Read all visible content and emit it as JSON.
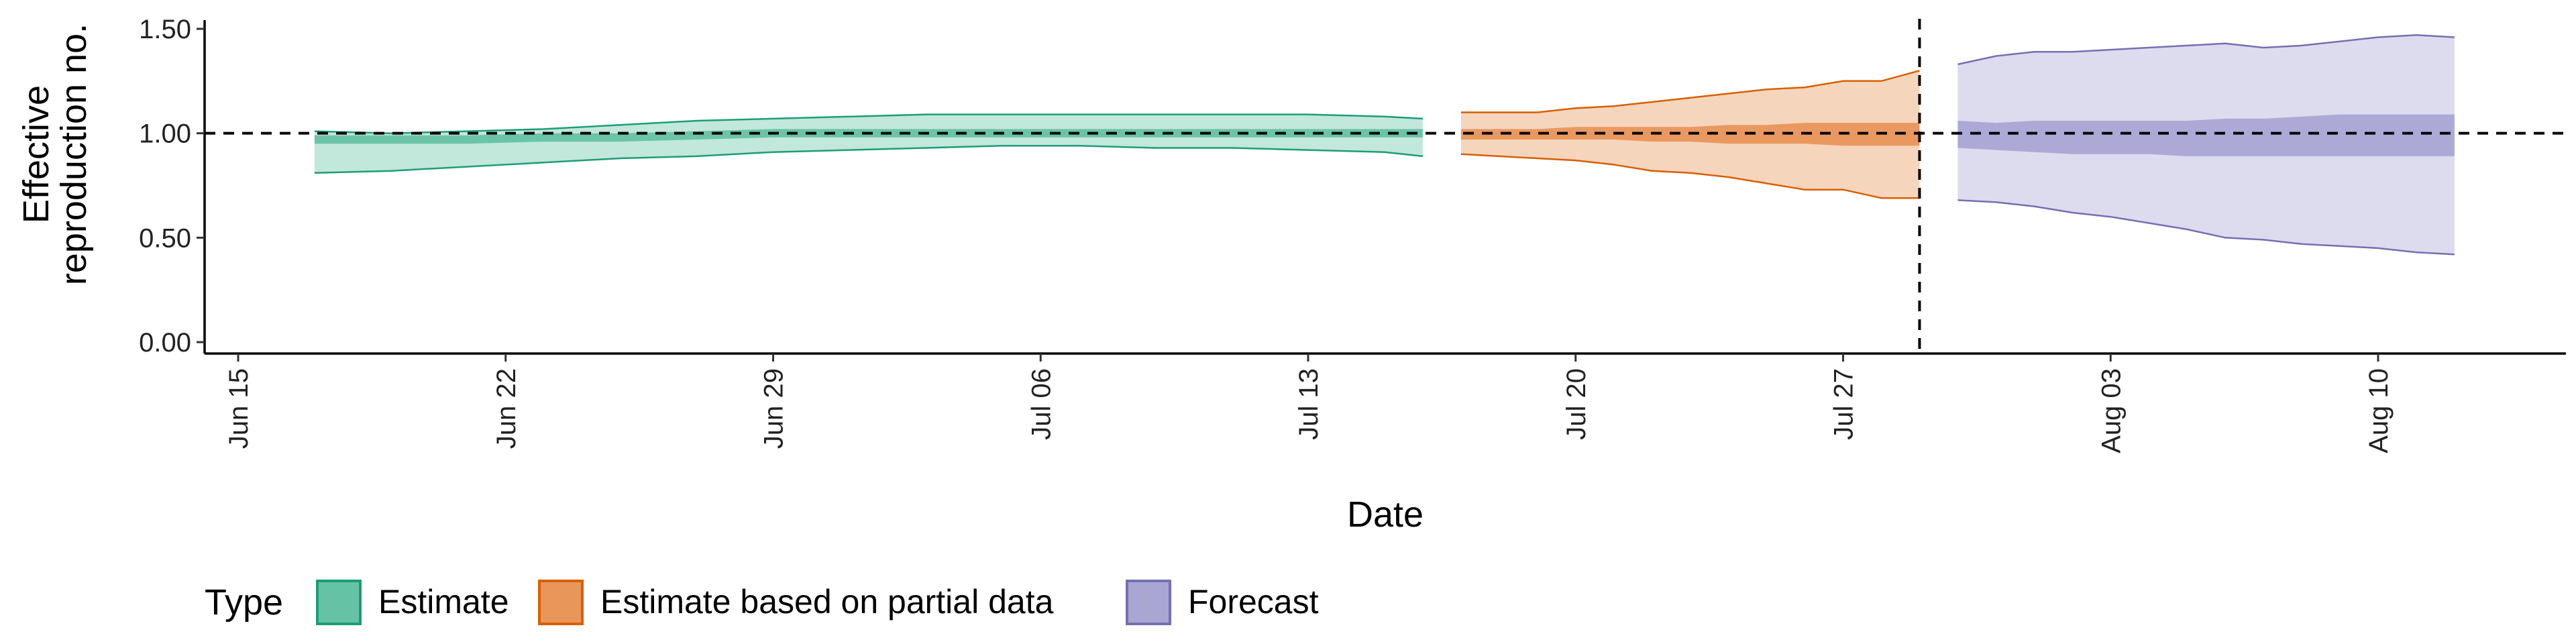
{
  "chart_data": {
    "type": "area",
    "xlabel": "Date",
    "ylabel": [
      "Effective",
      "reproduction no."
    ],
    "ylim": [
      0,
      1.55
    ],
    "y_ticks": [
      0,
      0.5,
      1.0,
      1.5
    ],
    "y_tick_labels": [
      "0.00",
      "0.50",
      "1.00",
      "1.50"
    ],
    "x_ticks": [
      "2020-06-15",
      "2020-06-22",
      "2020-06-29",
      "2020-07-06",
      "2020-07-13",
      "2020-07-20",
      "2020-07-27",
      "2020-08-03",
      "2020-08-10"
    ],
    "x_tick_labels": [
      "Jun 15",
      "Jun 22",
      "Jun 29",
      "Jul 06",
      "Jul 13",
      "Jul 20",
      "Jul 27",
      "Aug 03",
      "Aug 10"
    ],
    "x_range": [
      "2020-06-15",
      "2020-08-15"
    ],
    "reference_hline": 1.0,
    "reference_vline": "2020-07-29",
    "legend": {
      "title": "Type",
      "position": "bottom",
      "items": [
        {
          "label": "Estimate",
          "fill": "#66c2a5",
          "stroke": "#1b9e77"
        },
        {
          "label": "Estimate based on partial data",
          "fill": "#e8965a",
          "stroke": "#d95f02"
        },
        {
          "label": "Forecast",
          "fill": "#a9a6d4",
          "stroke": "#7570b3"
        }
      ]
    },
    "series": [
      {
        "name": "Estimate",
        "fill": "#66c2a5",
        "stroke": "#1b9e77",
        "x": [
          "2020-06-17",
          "2020-06-19",
          "2020-06-21",
          "2020-06-23",
          "2020-06-25",
          "2020-06-27",
          "2020-06-29",
          "2020-07-01",
          "2020-07-03",
          "2020-07-05",
          "2020-07-07",
          "2020-07-09",
          "2020-07-11",
          "2020-07-13",
          "2020-07-15",
          "2020-07-16"
        ],
        "lower_90": [
          0.81,
          0.82,
          0.84,
          0.86,
          0.88,
          0.89,
          0.91,
          0.92,
          0.93,
          0.94,
          0.94,
          0.93,
          0.93,
          0.92,
          0.91,
          0.89
        ],
        "upper_90": [
          1.01,
          1.0,
          1.01,
          1.02,
          1.04,
          1.06,
          1.07,
          1.08,
          1.09,
          1.09,
          1.09,
          1.09,
          1.09,
          1.09,
          1.08,
          1.07
        ],
        "lower_20": [
          0.95,
          0.95,
          0.95,
          0.96,
          0.96,
          0.97,
          0.98,
          0.98,
          0.98,
          0.98,
          0.98,
          0.98,
          0.98,
          0.98,
          0.98,
          0.98
        ],
        "upper_20": [
          0.99,
          0.99,
          0.99,
          1.0,
          1.0,
          1.01,
          1.02,
          1.02,
          1.02,
          1.02,
          1.02,
          1.02,
          1.02,
          1.02,
          1.02,
          1.02
        ]
      },
      {
        "name": "Estimate based on partial data",
        "fill": "#e8965a",
        "stroke": "#d95f02",
        "x": [
          "2020-07-17",
          "2020-07-18",
          "2020-07-19",
          "2020-07-20",
          "2020-07-21",
          "2020-07-22",
          "2020-07-23",
          "2020-07-24",
          "2020-07-25",
          "2020-07-26",
          "2020-07-27",
          "2020-07-28",
          "2020-07-29"
        ],
        "lower_90": [
          0.9,
          0.89,
          0.88,
          0.87,
          0.85,
          0.82,
          0.81,
          0.79,
          0.76,
          0.73,
          0.73,
          0.69,
          0.69
        ],
        "upper_90": [
          1.1,
          1.1,
          1.1,
          1.12,
          1.13,
          1.15,
          1.17,
          1.19,
          1.21,
          1.22,
          1.25,
          1.25,
          1.3
        ],
        "lower_20": [
          0.97,
          0.97,
          0.97,
          0.97,
          0.97,
          0.96,
          0.96,
          0.95,
          0.95,
          0.95,
          0.94,
          0.94,
          0.94
        ],
        "upper_20": [
          1.02,
          1.02,
          1.02,
          1.03,
          1.03,
          1.03,
          1.03,
          1.04,
          1.04,
          1.05,
          1.05,
          1.05,
          1.05
        ]
      },
      {
        "name": "Forecast",
        "fill": "#a9a6d4",
        "stroke": "#7570b3",
        "x": [
          "2020-07-30",
          "2020-07-31",
          "2020-08-01",
          "2020-08-02",
          "2020-08-03",
          "2020-08-04",
          "2020-08-05",
          "2020-08-06",
          "2020-08-07",
          "2020-08-08",
          "2020-08-09",
          "2020-08-10",
          "2020-08-11",
          "2020-08-12"
        ],
        "lower_90": [
          0.68,
          0.67,
          0.65,
          0.62,
          0.6,
          0.57,
          0.54,
          0.5,
          0.49,
          0.47,
          0.46,
          0.45,
          0.43,
          0.42
        ],
        "upper_90": [
          1.33,
          1.37,
          1.39,
          1.39,
          1.4,
          1.41,
          1.42,
          1.43,
          1.41,
          1.42,
          1.44,
          1.46,
          1.47,
          1.46
        ],
        "lower_20": [
          0.93,
          0.92,
          0.91,
          0.9,
          0.9,
          0.9,
          0.89,
          0.89,
          0.89,
          0.89,
          0.89,
          0.89,
          0.89,
          0.89
        ],
        "upper_20": [
          1.06,
          1.05,
          1.06,
          1.06,
          1.06,
          1.06,
          1.06,
          1.07,
          1.07,
          1.08,
          1.09,
          1.09,
          1.09,
          1.09
        ]
      }
    ]
  }
}
